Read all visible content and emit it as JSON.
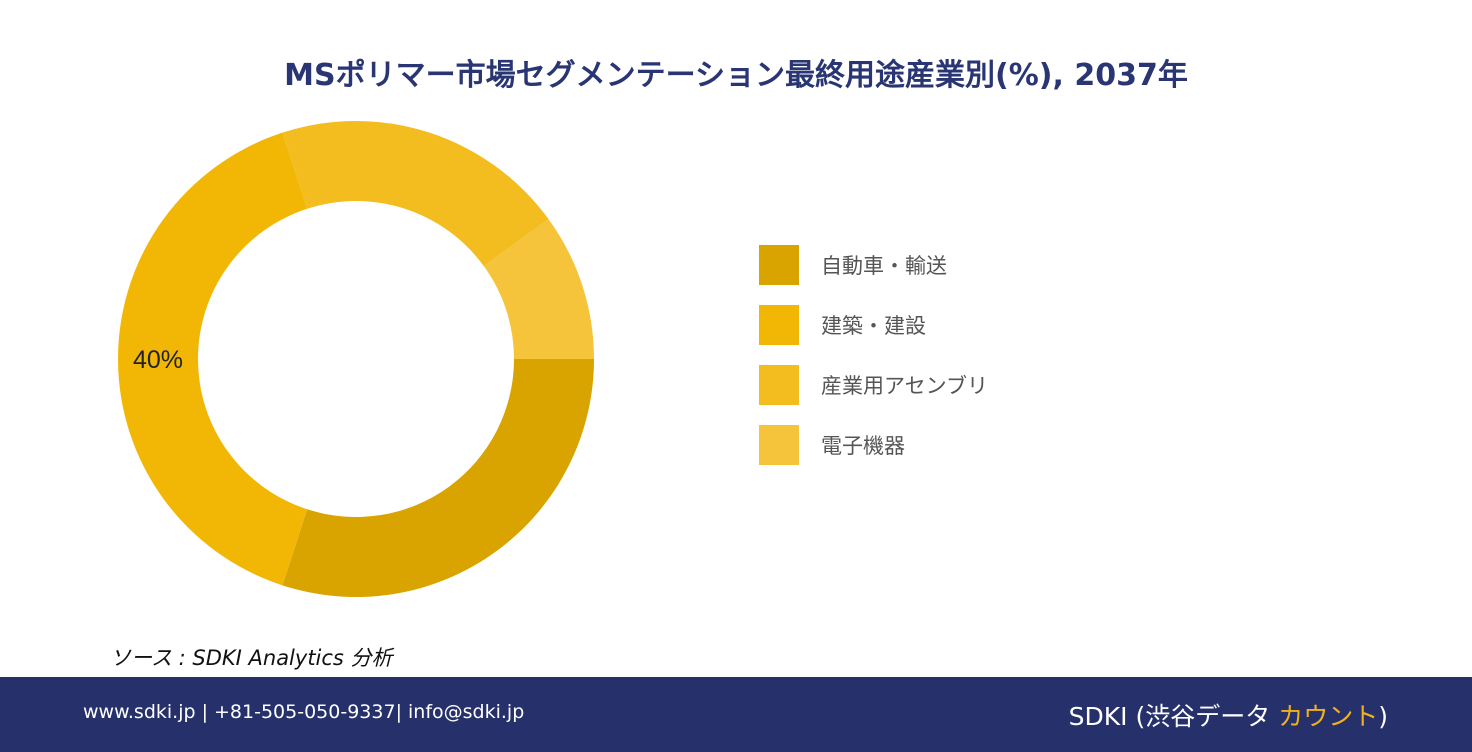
{
  "title": "MSポリマー市場セグメンテーション最終用途産業別(%), 2037年",
  "chart_data": {
    "type": "pie",
    "variant": "donut",
    "categories": [
      "自動車・輸送",
      "建築・建設",
      "産業用アセンブリ",
      "電子機器"
    ],
    "values": [
      30,
      40,
      20,
      10
    ],
    "colors": [
      "#d9a400",
      "#f2b705",
      "#f3bd1f",
      "#f5c43a"
    ],
    "data_labels": [
      "",
      "40%",
      "",
      ""
    ],
    "legend_position": "right"
  },
  "source": "ソース : SDKI Analytics 分析",
  "footer": {
    "contact": "www.sdki.jp | +81-505-050-9337| info@sdki.jp",
    "brand_prefix": "SDKI (渋谷データ ",
    "brand_accent": "カウント",
    "brand_suffix": ")"
  }
}
